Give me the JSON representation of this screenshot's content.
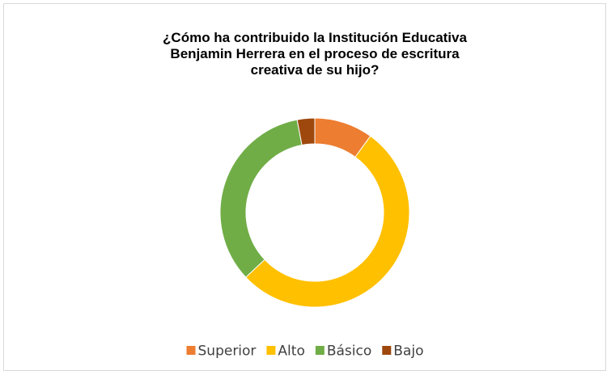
{
  "chart_data": {
    "type": "pie",
    "title": [
      "¿Cómo ha contribuido la Institución Educativa",
      "Benjamin Herrera en el proceso de escritura",
      "creativa de su hijo?"
    ],
    "categories": [
      "Superior",
      "Alto",
      "Básico",
      "Bajo"
    ],
    "values": [
      10,
      53,
      34,
      3
    ],
    "colors": [
      "#ed7d31",
      "#ffc000",
      "#70ad47",
      "#9e480e"
    ],
    "donut": true,
    "legend": "bottom"
  }
}
